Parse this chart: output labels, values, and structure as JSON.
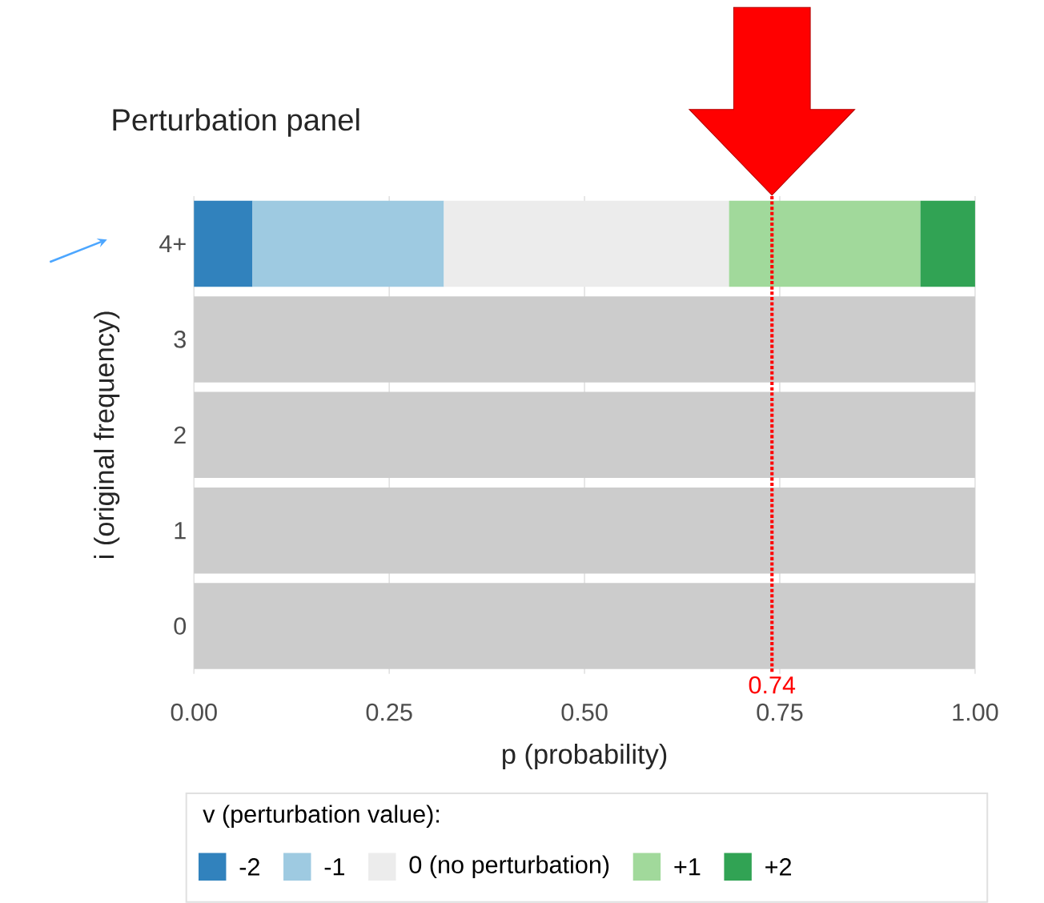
{
  "chart_data": {
    "type": "bar",
    "orientation": "horizontal",
    "stacked": true,
    "title": "Perturbation panel",
    "xlabel": "p (probability)",
    "ylabel": "i (original frequency)",
    "legend_title": "v (perturbation value):",
    "categories": [
      "4+",
      "3",
      "2",
      "1",
      "0"
    ],
    "series": [
      {
        "name": "-2",
        "color": "#3182bd",
        "values": [
          0.075,
          null,
          null,
          null,
          null
        ]
      },
      {
        "name": "-1",
        "color": "#9ecae1",
        "values": [
          0.245,
          null,
          null,
          null,
          null
        ]
      },
      {
        "name": "0 (no perturbation)",
        "color": "#ececec",
        "values": [
          0.365,
          null,
          null,
          null,
          null
        ]
      },
      {
        "name": "+1",
        "color": "#a1d99b",
        "values": [
          0.245,
          null,
          null,
          null,
          null
        ]
      },
      {
        "name": "+2",
        "color": "#31a354",
        "values": [
          0.07,
          null,
          null,
          null,
          null
        ]
      },
      {
        "color": "#cccccc",
        "values": [
          null,
          1,
          1,
          1,
          1
        ]
      }
    ],
    "xlim": [
      0,
      1
    ],
    "xticks": [
      {
        "value": 0,
        "label": "0.00"
      },
      {
        "value": 0.25,
        "label": "0.25"
      },
      {
        "value": 0.5,
        "label": "0.50"
      },
      {
        "value": 0.75,
        "label": "0.75"
      },
      {
        "value": 1,
        "label": "1.00"
      }
    ],
    "ref_lines": [
      {
        "axis": "x",
        "value": 0.74,
        "label": "0.74",
        "color": "#ff0000",
        "line_style": "dotted"
      }
    ],
    "grid": "x",
    "legend": "bottom"
  }
}
